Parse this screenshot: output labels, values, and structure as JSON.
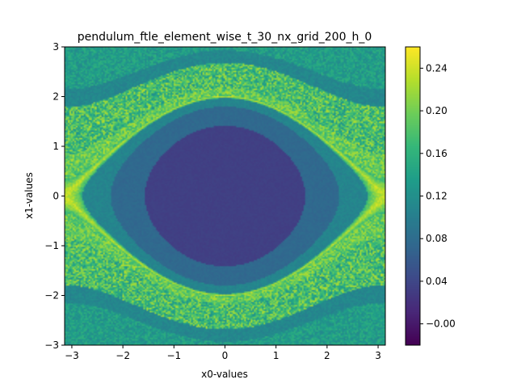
{
  "chart_data": {
    "type": "heatmap",
    "title": "pendulum_ftle_element_wise_t_30_nx_grid_200_h_0",
    "xlabel": "x0-values",
    "ylabel": "x1-values",
    "xlim": [
      -3.1416,
      3.1416
    ],
    "ylim": [
      -3,
      3
    ],
    "x_ticks": [
      -3,
      -2,
      -1,
      0,
      1,
      2,
      3
    ],
    "x_tick_labels": [
      "−3",
      "−2",
      "−1",
      "0",
      "1",
      "2",
      "3"
    ],
    "y_ticks": [
      -3,
      -2,
      -1,
      0,
      1,
      2,
      3
    ],
    "y_tick_labels": [
      "−3",
      "−2",
      "−1",
      "0",
      "1",
      "2",
      "3"
    ],
    "grid_resolution": [
      200,
      200
    ],
    "colormap": "viridis",
    "colorbar": {
      "vmin": -0.02,
      "vmax": 0.26,
      "ticks": [
        0.24,
        0.2,
        0.16,
        0.12,
        0.08,
        0.04,
        0.0
      ],
      "tick_labels": [
        "0.24",
        "0.20",
        "0.16",
        "0.12",
        "0.08",
        "0.04",
        "−0.00"
      ]
    },
    "field_levels": {
      "center": 0.03,
      "inner_ring": 0.07,
      "outer_ring": 0.1,
      "separatrix": 0.22,
      "rotating_region": 0.13
    }
  }
}
